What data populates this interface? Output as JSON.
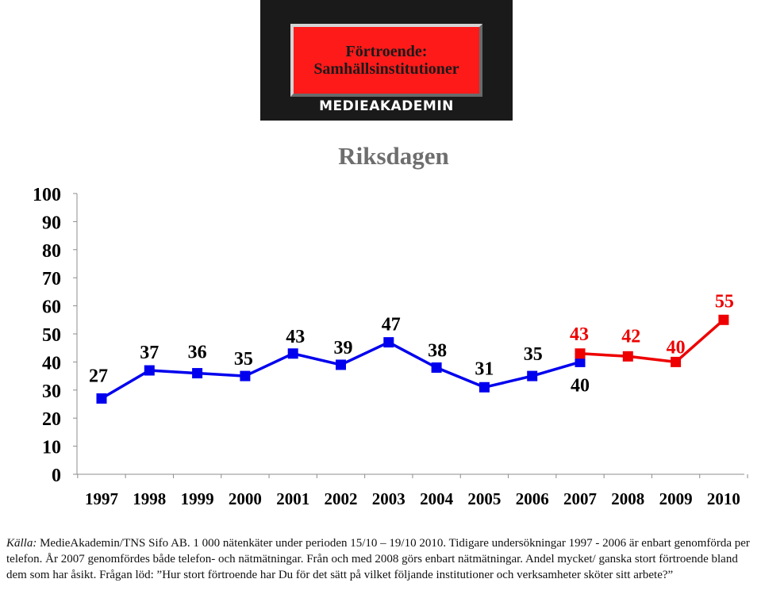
{
  "header": {
    "logo_line1": "Förtroende:",
    "logo_line2": "Samhällsinstitutioner",
    "logo_brand": "MEDIEAKADEMIN"
  },
  "colors": {
    "series_phone": "#0000ee",
    "series_web": "#ee0000",
    "logo_red": "#ff1a1a",
    "logo_bg": "#1a1a1a",
    "title": "#6e6e6e",
    "axis": "#8c8c8c"
  },
  "chart_data": {
    "type": "line",
    "title": "Riksdagen",
    "xlabel": "",
    "ylabel": "",
    "ylim": [
      0,
      100
    ],
    "yticks": [
      "0",
      "10",
      "20",
      "30",
      "40",
      "50",
      "60",
      "70",
      "80",
      "90",
      "100"
    ],
    "categories": [
      "1997",
      "1998",
      "1999",
      "2000",
      "2001",
      "2002",
      "2003",
      "2004",
      "2005",
      "2006",
      "2007",
      "2008",
      "2009",
      "2010"
    ],
    "grid": false,
    "legend": "none",
    "series": [
      {
        "values": [
          27,
          37,
          36,
          35,
          43,
          39,
          47,
          38,
          31,
          35,
          40,
          null,
          null,
          null
        ],
        "labels": [
          "27",
          "37",
          "36",
          "35",
          "43",
          "39",
          "47",
          "38",
          "31",
          "35",
          "40",
          "",
          "",
          ""
        ]
      },
      {
        "values": [
          null,
          null,
          null,
          null,
          null,
          null,
          null,
          null,
          null,
          null,
          43,
          42,
          40,
          55
        ],
        "labels": [
          "",
          "",
          "",
          "",
          "",
          "",
          "",
          "",
          "",
          "",
          "43",
          "42",
          "40",
          "55"
        ]
      }
    ]
  },
  "footer": {
    "source_label": "Källa:",
    "source_text": " MedieAkademin/TNS Sifo AB. 1 000 nätenkäter under perioden 15/10 – 19/10 2010. Tidigare undersökningar 1997 - 2006 är enbart genomförda per telefon. År 2007 genomfördes både telefon-  och nätmätningar. Från och med 2008 görs enbart nätmätningar. Andel mycket/ ganska stort förtroende bland dem som har åsikt. Frågan löd: ”Hur stort förtroende har Du för det sätt på vilket följande institutioner och verksamheter sköter sitt arbete?”"
  }
}
